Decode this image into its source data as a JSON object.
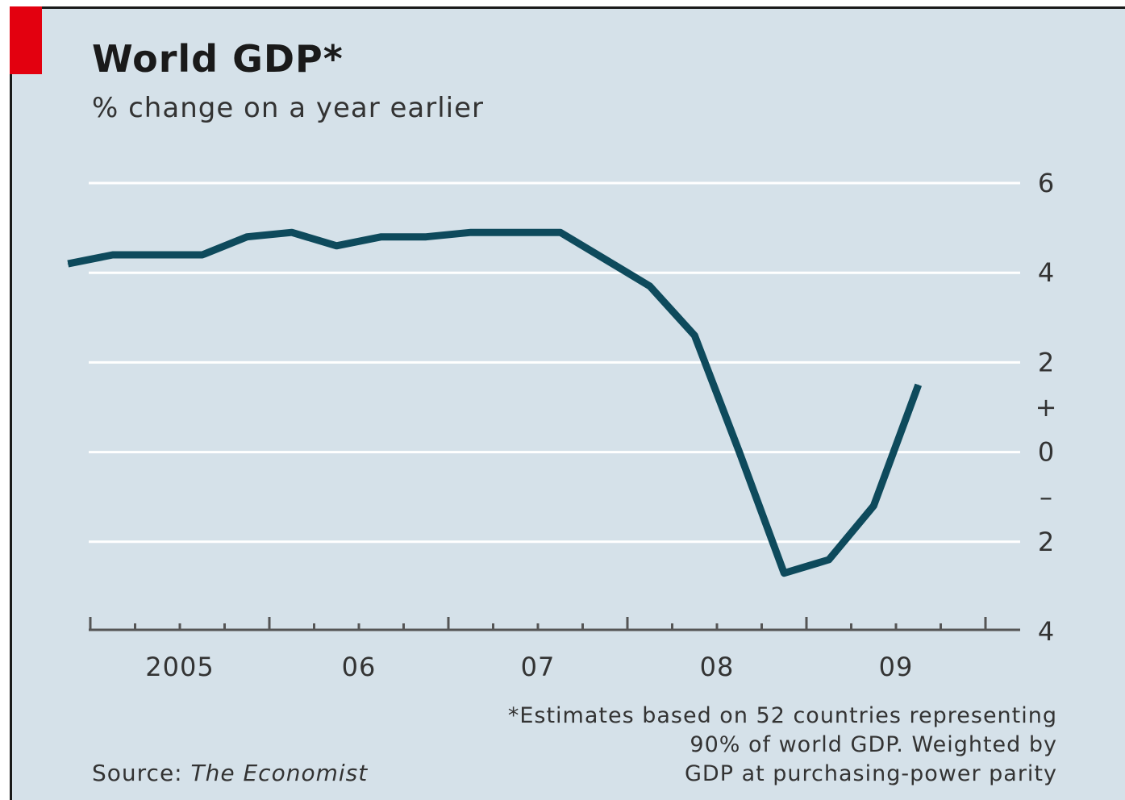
{
  "title": "World GDP*",
  "subtitle": "% change on a year earlier",
  "footnote": {
    "lines": [
      "*Estimates based on 52 countries representing",
      "90% of world GDP. Weighted by",
      "GDP at purchasing-power parity"
    ]
  },
  "source": {
    "label": "Source: ",
    "publication": "The Economist"
  },
  "colors": {
    "background": "#d5e1e9",
    "line": "#0e4a5c",
    "accent": "#e3000f",
    "grid": "#ffffff"
  },
  "chart_data": {
    "type": "line",
    "title": "World GDP*",
    "subtitle": "% change on a year earlier",
    "xlabel": "",
    "ylabel": "",
    "x_tick_labels": [
      "2005",
      "06",
      "07",
      "08",
      "09"
    ],
    "x_range": [
      "2004-10",
      "2009-12"
    ],
    "ylim": [
      -4,
      6
    ],
    "y_ticks": [
      {
        "value": 6,
        "label": "6"
      },
      {
        "value": 4,
        "label": "4"
      },
      {
        "value": 2,
        "label": "2"
      },
      {
        "value": 1,
        "label": "+"
      },
      {
        "value": 0,
        "label": "0"
      },
      {
        "value": -1,
        "label": "–"
      },
      {
        "value": -2,
        "label": "2"
      },
      {
        "value": -4,
        "label": "4"
      }
    ],
    "grid": true,
    "y_axis_position": "right",
    "series": [
      {
        "values": [
          {
            "x": "2004-Q4",
            "y": 4.2
          },
          {
            "x": "2005-Q1",
            "y": 4.4
          },
          {
            "x": "2005-Q2",
            "y": 4.4
          },
          {
            "x": "2005-Q3",
            "y": 4.4
          },
          {
            "x": "2005-Q4",
            "y": 4.8
          },
          {
            "x": "2006-Q1",
            "y": 4.9
          },
          {
            "x": "2006-Q2",
            "y": 4.6
          },
          {
            "x": "2006-Q3",
            "y": 4.8
          },
          {
            "x": "2006-Q4",
            "y": 4.8
          },
          {
            "x": "2007-Q1",
            "y": 4.9
          },
          {
            "x": "2007-Q2",
            "y": 4.9
          },
          {
            "x": "2007-Q3",
            "y": 4.9
          },
          {
            "x": "2007-Q4",
            "y": 4.3
          },
          {
            "x": "2008-Q1",
            "y": 3.7
          },
          {
            "x": "2008-Q2",
            "y": 2.6
          },
          {
            "x": "2008-Q3",
            "y": 0.0
          },
          {
            "x": "2008-Q4",
            "y": -2.7
          },
          {
            "x": "2009-Q1",
            "y": -2.4
          },
          {
            "x": "2009-Q2",
            "y": -1.2
          },
          {
            "x": "2009-Q3",
            "y": 1.5
          }
        ]
      }
    ]
  }
}
